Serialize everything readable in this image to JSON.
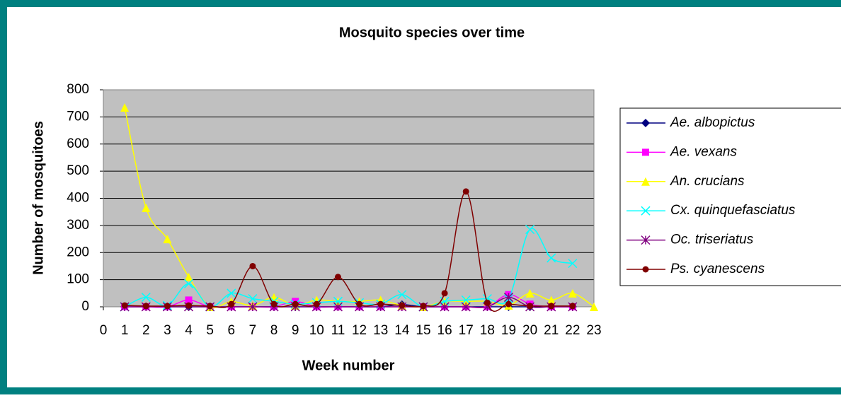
{
  "chart_data": {
    "type": "line",
    "title": "Mosquito species over time",
    "xlabel": "Week number",
    "ylabel": "Number of mosquitoes",
    "x": [
      1,
      2,
      3,
      4,
      5,
      6,
      7,
      8,
      9,
      10,
      11,
      12,
      13,
      14,
      15,
      16,
      17,
      18,
      19,
      20,
      21,
      22,
      23
    ],
    "xlim": [
      0,
      23
    ],
    "xticks": [
      0,
      1,
      2,
      3,
      4,
      5,
      6,
      7,
      8,
      9,
      10,
      11,
      12,
      13,
      14,
      15,
      16,
      17,
      18,
      19,
      20,
      21,
      22,
      23
    ],
    "ylim": [
      0,
      800
    ],
    "yticks": [
      0,
      100,
      200,
      300,
      400,
      500,
      600,
      700,
      800
    ],
    "grid": true,
    "legend": "right",
    "series": [
      {
        "name": "Ae. albopictus",
        "color": "#000080",
        "marker": "diamond",
        "values": [
          0,
          0,
          0,
          0,
          0,
          0,
          0,
          0,
          0,
          0,
          0,
          0,
          0,
          8,
          0,
          0,
          0,
          0,
          0,
          0,
          0,
          0,
          null
        ]
      },
      {
        "name": "Ae. vexans",
        "color": "#ff00ff",
        "marker": "square",
        "values": [
          0,
          0,
          0,
          25,
          0,
          0,
          0,
          0,
          20,
          0,
          0,
          0,
          0,
          0,
          0,
          0,
          0,
          0,
          45,
          10,
          0,
          0,
          null
        ]
      },
      {
        "name": "An. crucians",
        "color": "#ffff00",
        "marker": "triangle",
        "values": [
          735,
          365,
          250,
          110,
          0,
          20,
          5,
          35,
          5,
          25,
          20,
          20,
          25,
          5,
          0,
          20,
          20,
          20,
          5,
          50,
          25,
          50,
          0
        ]
      },
      {
        "name": "Cx. quinquefasciatus",
        "color": "#00ffff",
        "marker": "x",
        "values": [
          0,
          35,
          5,
          85,
          0,
          50,
          30,
          20,
          10,
          15,
          20,
          15,
          10,
          45,
          0,
          20,
          25,
          30,
          30,
          285,
          180,
          160,
          null
        ]
      },
      {
        "name": "Oc. triseriatus",
        "color": "#800080",
        "marker": "star",
        "values": [
          0,
          0,
          0,
          0,
          0,
          0,
          0,
          0,
          0,
          0,
          0,
          0,
          0,
          0,
          0,
          0,
          0,
          0,
          35,
          0,
          0,
          0,
          null
        ]
      },
      {
        "name": "Ps. cyanescens",
        "color": "#800000",
        "marker": "circle",
        "values": [
          5,
          3,
          3,
          5,
          3,
          10,
          150,
          10,
          10,
          10,
          110,
          10,
          10,
          5,
          3,
          50,
          425,
          15,
          10,
          3,
          3,
          3,
          null
        ]
      }
    ]
  }
}
